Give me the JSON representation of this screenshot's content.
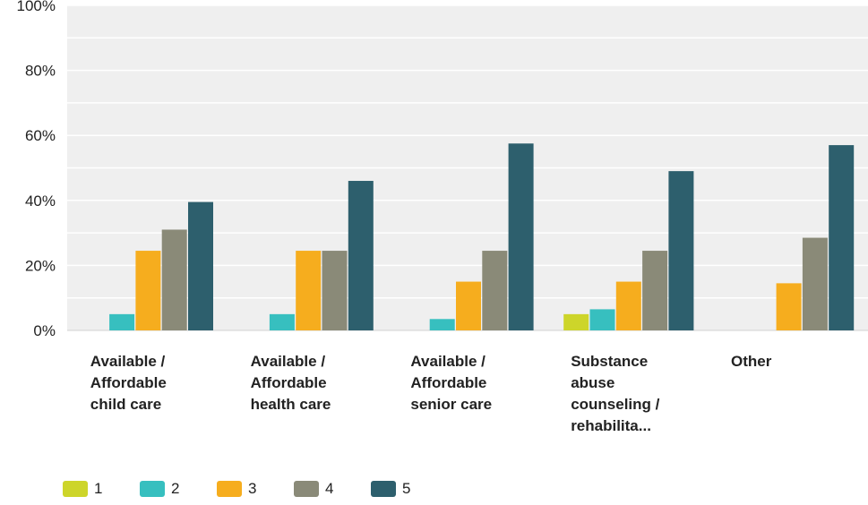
{
  "chart_data": {
    "type": "bar",
    "categories": [
      [
        "Available /",
        "Affordable",
        "child care"
      ],
      [
        "Available /",
        "Affordable",
        "health care"
      ],
      [
        "Available /",
        "Affordable",
        "senior care"
      ],
      [
        "Substance",
        "abuse",
        "counseling /",
        "rehabilita..."
      ],
      [
        "Other"
      ]
    ],
    "series": [
      {
        "name": "1",
        "color": "#cdd52a",
        "values": [
          0,
          0,
          0,
          5,
          0
        ]
      },
      {
        "name": "2",
        "color": "#37bfbf",
        "values": [
          5,
          5,
          3.5,
          6.5,
          0
        ]
      },
      {
        "name": "3",
        "color": "#f6ad1e",
        "values": [
          24.5,
          24.5,
          15,
          15,
          14.5
        ]
      },
      {
        "name": "4",
        "color": "#8a8a78",
        "values": [
          31,
          24.5,
          24.5,
          24.5,
          28.5
        ]
      },
      {
        "name": "5",
        "color": "#2d5f6d",
        "values": [
          39.5,
          46,
          57.5,
          49,
          57
        ]
      }
    ],
    "yticks": [
      "100%",
      "80%",
      "60%",
      "40%",
      "20%",
      "0%"
    ],
    "ylim": [
      0,
      100
    ],
    "grid": true,
    "legend_position": "bottom-left"
  }
}
